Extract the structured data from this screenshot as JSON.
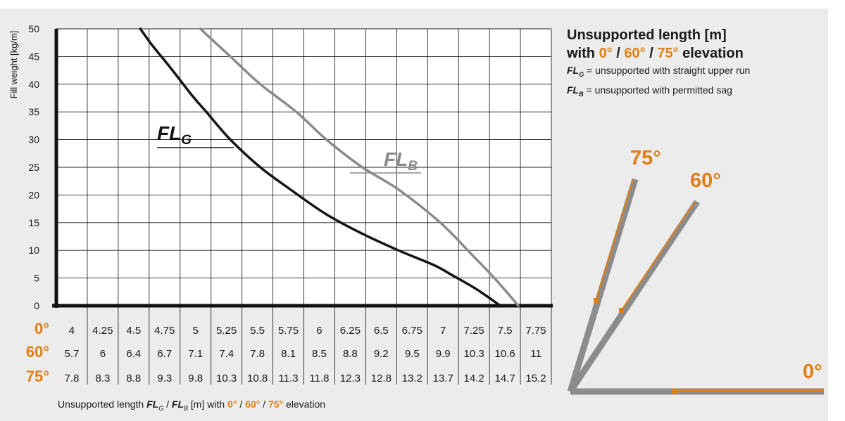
{
  "info": {
    "line1": "Unsupported length [m]",
    "with_word": "with",
    "elev_0": "0°",
    "elev_60": "60°",
    "elev_75": "75°",
    "slash": "/",
    "elevation_word": "elevation",
    "def_g_symbol": "FL",
    "def_g_sub": "G",
    "def_g_text": "= unsupported with straight upper run",
    "def_b_symbol": "FL",
    "def_b_sub": "B",
    "def_b_text": "= unsupported with permitted sag"
  },
  "footer": {
    "prefix": "Unsupported length",
    "fl": "FL",
    "g": "G",
    "b": "B",
    "unit": "[m] with",
    "e0": "0°",
    "e60": "60°",
    "e75": "75°",
    "slash": "/",
    "suffix": "elevation"
  },
  "diagram": {
    "label_75": "75°",
    "label_60": "60°",
    "label_0": "0°"
  },
  "colors": {
    "accent": "#e07f14",
    "fl_g": "#141414",
    "fl_b": "#8a8a8a",
    "grid": "#222222",
    "panel": "#ececec",
    "arm": "#8c8c8c"
  },
  "chart_data": {
    "type": "line",
    "ylabel": "Fill weight [kg/m]",
    "ylim": [
      0,
      50
    ],
    "yticks": [
      0,
      5,
      10,
      15,
      20,
      25,
      30,
      35,
      40,
      45,
      50
    ],
    "xlim": [
      3.75,
      7.875
    ],
    "grid": true,
    "x_rows": [
      {
        "label": "0°",
        "values": [
          "4",
          "4.25",
          "4.5",
          "4.75",
          "5",
          "5.25",
          "5.5",
          "5.75",
          "6",
          "6.25",
          "6.5",
          "6.75",
          "7",
          "7.25",
          "7.5",
          "7.75"
        ]
      },
      {
        "label": "60°",
        "values": [
          "5.7",
          "6",
          "6.4",
          "6.7",
          "7.1",
          "7.4",
          "7.8",
          "8.1",
          "8.5",
          "8.8",
          "9.2",
          "9.5",
          "9.9",
          "10.3",
          "10.6",
          "11"
        ]
      },
      {
        "label": "75°",
        "values": [
          "7.8",
          "8.3",
          "8.8",
          "9.3",
          "9.8",
          "10.3",
          "10.8",
          "11.3",
          "11.8",
          "12.3",
          "12.8",
          "13.2",
          "13.7",
          "14.2",
          "14.7",
          "15.2"
        ]
      }
    ],
    "series": [
      {
        "name": "FLG",
        "label_main": "FL",
        "label_sub": "G",
        "x": [
          4.45,
          4.55,
          4.7,
          4.88,
          5.0,
          5.2,
          5.45,
          5.7,
          6.0,
          6.3,
          6.6,
          6.9,
          7.05,
          7.25,
          7.45
        ],
        "y": [
          50,
          47,
          43,
          38,
          35,
          30,
          25,
          21,
          16.5,
          13,
          10,
          7.3,
          5.5,
          3,
          0
        ]
      },
      {
        "name": "FLB",
        "label_main": "FL",
        "label_sub": "B",
        "x": [
          4.95,
          5.2,
          5.45,
          5.75,
          6.0,
          6.3,
          6.6,
          6.95,
          7.2,
          7.4,
          7.6
        ],
        "y": [
          50,
          45,
          40,
          35,
          30,
          25,
          21,
          15,
          9.5,
          5,
          0
        ]
      }
    ]
  }
}
